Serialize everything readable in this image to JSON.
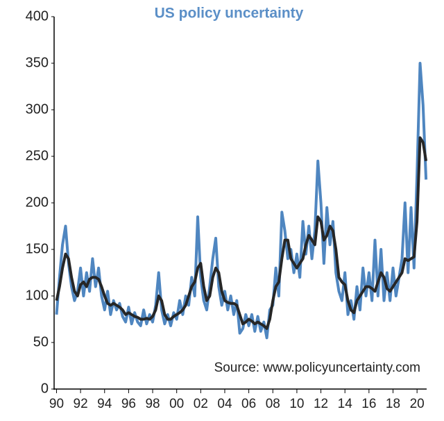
{
  "chart_data": {
    "type": "line",
    "title": "US policy uncertainty",
    "annotation": "Source: www.policyuncertainty.com",
    "x": [
      1990,
      1990.25,
      1990.5,
      1990.75,
      1991,
      1991.25,
      1991.5,
      1991.75,
      1992,
      1992.25,
      1992.5,
      1992.75,
      1993,
      1993.25,
      1993.5,
      1993.75,
      1994,
      1994.25,
      1994.5,
      1994.75,
      1995,
      1995.25,
      1995.5,
      1995.75,
      1996,
      1996.25,
      1996.5,
      1996.75,
      1997,
      1997.25,
      1997.5,
      1997.75,
      1998,
      1998.25,
      1998.5,
      1998.75,
      1999,
      1999.25,
      1999.5,
      1999.75,
      2000,
      2000.25,
      2000.5,
      2000.75,
      2001,
      2001.25,
      2001.5,
      2001.75,
      2002,
      2002.25,
      2002.5,
      2002.75,
      2003,
      2003.25,
      2003.5,
      2003.75,
      2004,
      2004.25,
      2004.5,
      2004.75,
      2005,
      2005.25,
      2005.5,
      2005.75,
      2006,
      2006.25,
      2006.5,
      2006.75,
      2007,
      2007.25,
      2007.5,
      2007.75,
      2008,
      2008.25,
      2008.5,
      2008.75,
      2009,
      2009.25,
      2009.5,
      2009.75,
      2010,
      2010.25,
      2010.5,
      2010.75,
      2011,
      2011.25,
      2011.5,
      2011.75,
      2012,
      2012.25,
      2012.5,
      2012.75,
      2013,
      2013.25,
      2013.5,
      2013.75,
      2014,
      2014.25,
      2014.5,
      2014.75,
      2015,
      2015.25,
      2015.5,
      2015.75,
      2016,
      2016.25,
      2016.5,
      2016.75,
      2017,
      2017.25,
      2017.5,
      2017.75,
      2018,
      2018.25,
      2018.5,
      2018.75,
      2019,
      2019.25,
      2019.5,
      2019.75,
      2020,
      2020.25,
      2020.5,
      2020.75
    ],
    "series": [
      {
        "color": "#4f86c0",
        "width": 4,
        "values": [
          80,
          120,
          155,
          175,
          135,
          110,
          95,
          105,
          130,
          100,
          125,
          105,
          140,
          110,
          130,
          100,
          85,
          105,
          80,
          95,
          85,
          92,
          78,
          72,
          88,
          70,
          82,
          72,
          68,
          85,
          70,
          80,
          72,
          90,
          125,
          85,
          70,
          80,
          68,
          82,
          75,
          95,
          80,
          100,
          90,
          120,
          100,
          185,
          120,
          95,
          85,
          110,
          140,
          162,
          110,
          90,
          105,
          85,
          100,
          80,
          95,
          60,
          65,
          80,
          68,
          80,
          62,
          78,
          62,
          72,
          55,
          85,
          90,
          130,
          100,
          190,
          170,
          140,
          150,
          125,
          145,
          120,
          180,
          145,
          175,
          140,
          170,
          245,
          200,
          135,
          195,
          155,
          180,
          125,
          105,
          95,
          125,
          80,
          95,
          75,
          110,
          85,
          130,
          100,
          125,
          95,
          160,
          100,
          150,
          95,
          125,
          95,
          130,
          100,
          120,
          140,
          200,
          125,
          195,
          130,
          230,
          350,
          305,
          225
        ]
      },
      {
        "color": "#262626",
        "width": 4,
        "values": [
          95,
          110,
          130,
          145,
          140,
          120,
          105,
          100,
          112,
          115,
          110,
          118,
          120,
          120,
          118,
          110,
          100,
          92,
          90,
          92,
          90,
          88,
          85,
          80,
          82,
          80,
          78,
          77,
          75,
          75,
          76,
          75,
          78,
          85,
          100,
          95,
          80,
          75,
          75,
          78,
          80,
          82,
          85,
          90,
          100,
          110,
          115,
          130,
          135,
          110,
          95,
          100,
          120,
          130,
          125,
          105,
          95,
          93,
          92,
          92,
          90,
          80,
          70,
          72,
          75,
          73,
          70,
          72,
          70,
          68,
          65,
          75,
          95,
          110,
          115,
          140,
          160,
          160,
          140,
          135,
          130,
          135,
          140,
          155,
          165,
          160,
          155,
          185,
          180,
          160,
          165,
          175,
          170,
          150,
          120,
          115,
          112,
          95,
          85,
          82,
          95,
          100,
          105,
          110,
          110,
          108,
          105,
          115,
          125,
          120,
          108,
          105,
          110,
          115,
          120,
          125,
          140,
          138,
          140,
          142,
          180,
          270,
          265,
          245
        ]
      }
    ],
    "xlim": [
      1989.8,
      2020.8
    ],
    "xticks": [
      {
        "value": 1990,
        "label": "90"
      },
      {
        "value": 1992,
        "label": "92"
      },
      {
        "value": 1994,
        "label": "94"
      },
      {
        "value": 1996,
        "label": "96"
      },
      {
        "value": 1998,
        "label": "98"
      },
      {
        "value": 2000,
        "label": "00"
      },
      {
        "value": 2002,
        "label": "02"
      },
      {
        "value": 2004,
        "label": "04"
      },
      {
        "value": 2006,
        "label": "06"
      },
      {
        "value": 2008,
        "label": "08"
      },
      {
        "value": 2010,
        "label": "10"
      },
      {
        "value": 2012,
        "label": "12"
      },
      {
        "value": 2014,
        "label": "14"
      },
      {
        "value": 2016,
        "label": "16"
      },
      {
        "value": 2018,
        "label": "18"
      },
      {
        "value": 2020,
        "label": "20"
      }
    ],
    "ylim": [
      0,
      400
    ],
    "yticks": [
      0,
      50,
      100,
      150,
      200,
      250,
      300,
      350,
      400
    ]
  }
}
